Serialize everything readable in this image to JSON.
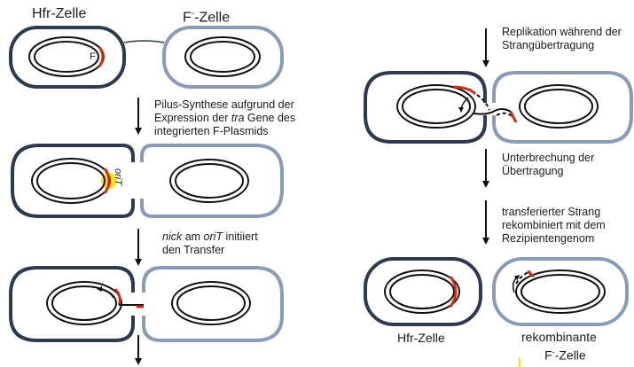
{
  "labels": {
    "hfr_top": "Hfr-Zelle",
    "fminus_top": "F",
    "fminus_top_sup": "-",
    "fminus_top_rest": "-Zelle",
    "f_plasmid": "F",
    "step1_line1": "Pilus-Synthese aufgrund der",
    "step1_line2_a": "Expression der ",
    "step1_line2_b": "tra",
    "step1_line2_c": " Gene des",
    "step1_line3": "integrierten F-Plasmids",
    "orit_label": "oriT",
    "step2_line1_a": "nick",
    "step2_line1_b": " am ",
    "step2_line1_c": "oriT",
    "step2_line1_d": " initiiert",
    "step2_line2": "den Transfer",
    "step3_line1": "Replikation während der",
    "step3_line2": "Strangübertragung",
    "step4_line1": "Unterbrechung der",
    "step4_line2": "Übertragung",
    "step5_line1": "transferierter Strang",
    "step5_line2": "rekombiniert mit dem",
    "step5_line3": "Rezipientengenom",
    "hfr_bottom": "Hfr-Zelle",
    "rekombinant_line1": "rekombinante",
    "rekombinant_line2_a": "F",
    "rekombinant_line2_sup": "-",
    "rekombinant_line2_b": "-Zelle"
  },
  "colors": {
    "hfr_cell": "#2d3a4e",
    "fminus_cell": "#8a9bb5",
    "chromosome": "#111111",
    "f_factor": "#d42a14",
    "orit_highlight": "#ffe000"
  }
}
